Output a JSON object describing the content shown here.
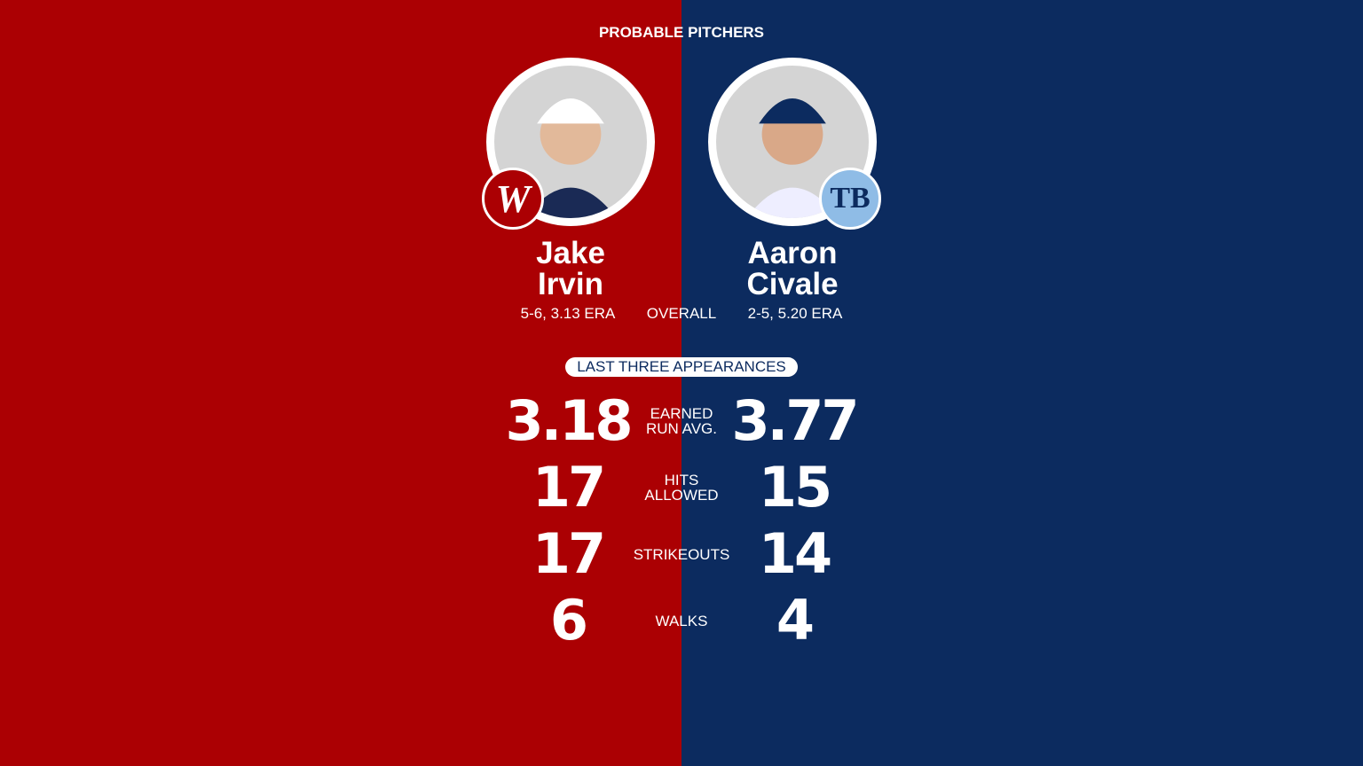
{
  "colors": {
    "home": "#ab0003",
    "away": "#0c2b5f"
  },
  "header": {
    "title": "PROBABLE PITCHERS"
  },
  "pitchers": [
    {
      "first": "Jake",
      "last": "Irvin",
      "record": "5-6, 3.13 ERA",
      "team_logo": "W",
      "logo_icon": "nationals-logo"
    },
    {
      "first": "Aaron",
      "last": "Civale",
      "record": "2-5, 5.20 ERA",
      "team_logo": "TB",
      "logo_icon": "rays-logo"
    }
  ],
  "overall_label": "OVERALL",
  "section_label": "LAST THREE APPEARANCES",
  "stats": [
    {
      "label1": "EARNED",
      "label2": "RUN AVG.",
      "left": "3.18",
      "right": "3.77"
    },
    {
      "label1": "HITS",
      "label2": "ALLOWED",
      "left": "17",
      "right": "15"
    },
    {
      "label1": "STRIKEOUTS",
      "label2": "",
      "left": "17",
      "right": "14"
    },
    {
      "label1": "WALKS",
      "label2": "",
      "left": "6",
      "right": "4"
    }
  ]
}
